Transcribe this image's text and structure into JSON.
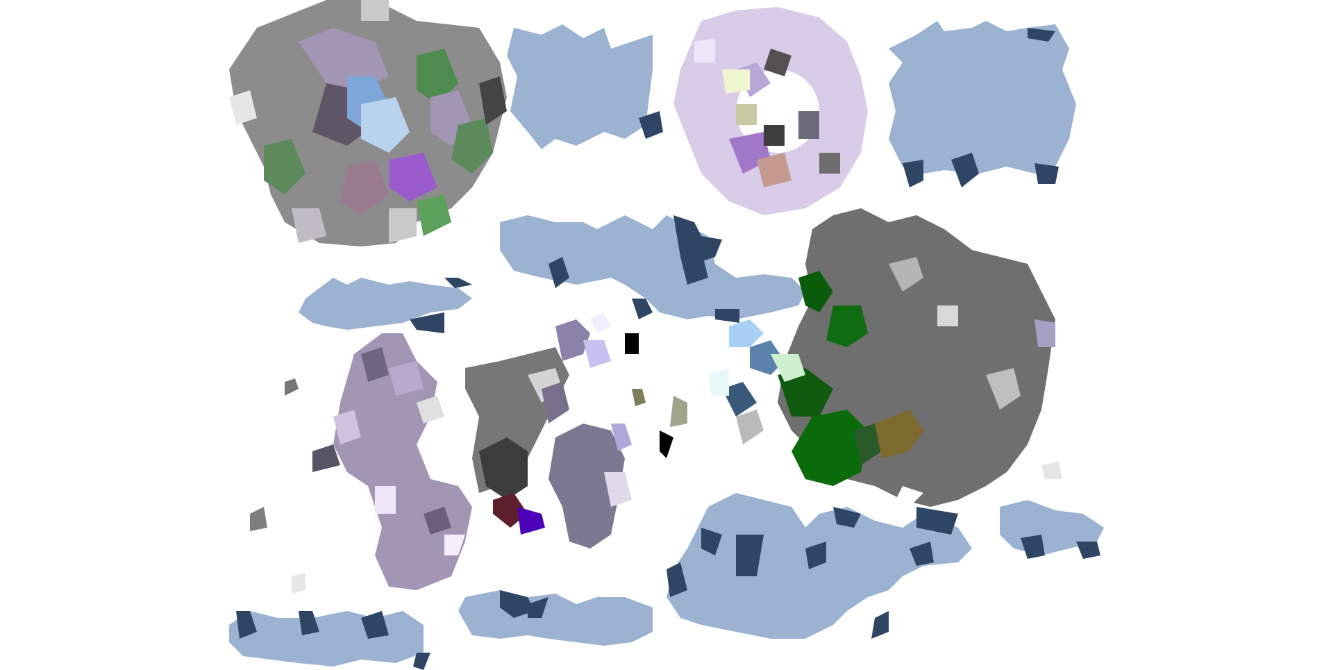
{
  "palette": {
    "background": "#ffffff",
    "cloud_blue": "#9bb2d1",
    "navy": "#2e4663",
    "slate_gray": "#6f6f6f",
    "mid_gray": "#8c8c8c",
    "light_gray": "#c9c9c9",
    "dark_gray": "#444444",
    "lavender": "#a395b4",
    "light_lavender": "#e4d9f2",
    "forest_green": "#0f6b0f",
    "moss_green": "#5c8a5c",
    "violet": "#7a3fc2",
    "sky_blue": "#7fa6d8",
    "olive": "#7d6a2f",
    "maroon": "#5e1f2c",
    "indigo": "#4c00b8",
    "black": "#000000"
  },
  "regions": [
    "top-left-mosaic-cluster",
    "top-center-blue-patch",
    "top-center-lilac-ring",
    "top-right-blue-patch",
    "middle-blue-band",
    "left-lavender-column",
    "center-gray-purple-cluster",
    "right-gray-green-cluster",
    "bottom-blue-band"
  ]
}
